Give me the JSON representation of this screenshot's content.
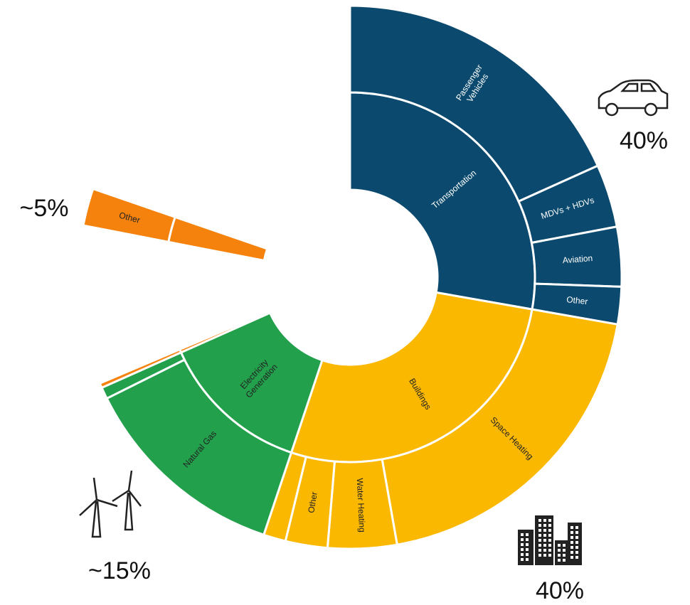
{
  "chart_data": {
    "type": "sunburst",
    "groups": [
      {
        "name": "Transportation",
        "color": "#0b4a6e",
        "value": 40,
        "children": [
          {
            "name": "Passenger Vehicles",
            "value": 26.3
          },
          {
            "name": "MDVs + HDVs",
            "value": 5.4
          },
          {
            "name": "Aviation",
            "value": 5.1
          },
          {
            "name": "Other",
            "value": 3.2
          }
        ]
      },
      {
        "name": "Buildings",
        "color": "#fbb800",
        "value": 39.4,
        "children": [
          {
            "name": "Space Heating",
            "value": 28
          },
          {
            "name": "Water Heating",
            "value": 5.9
          },
          {
            "name": "Other",
            "value": 3.6
          },
          {
            "name": null,
            "value": 1.9
          }
        ]
      },
      {
        "name": "Electricity Generation",
        "color": "#22a04b",
        "value": 19,
        "children": [
          {
            "name": "Natural Gas",
            "value": 18
          },
          {
            "name": null,
            "value": 1
          }
        ]
      },
      {
        "name": null,
        "color": "#f5820d",
        "value": 0.4,
        "children": [
          {
            "name": null,
            "value": 0.4
          }
        ]
      },
      {
        "name": null,
        "color": "#f5820d",
        "value": 3.2,
        "children": [
          {
            "name": "Other",
            "value": 3.2
          }
        ]
      }
    ],
    "annotations": [
      "40%",
      "40%",
      "~15%",
      "~5%"
    ]
  }
}
